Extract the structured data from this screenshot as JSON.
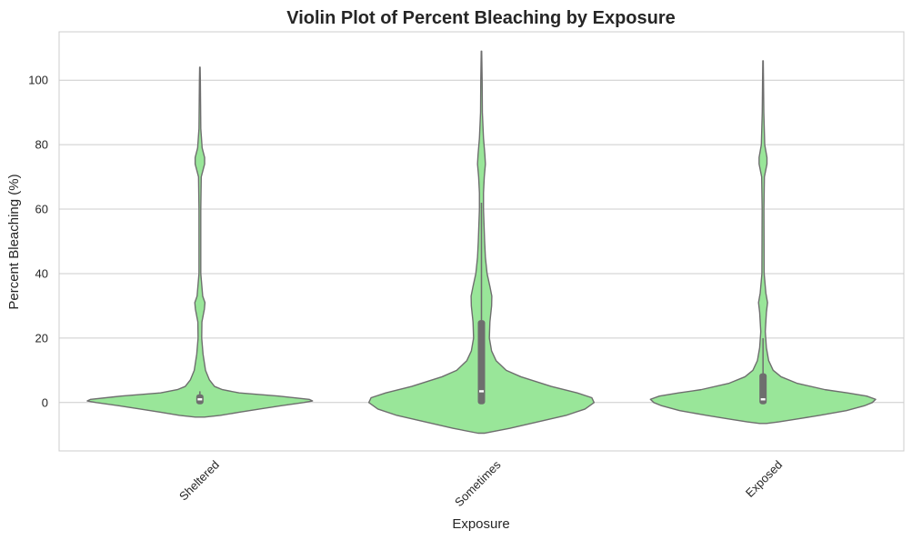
{
  "chart_data": {
    "type": "violin",
    "title": "Violin Plot of Percent Bleaching by Exposure",
    "xlabel": "Exposure",
    "ylabel": "Percent Bleaching (%)",
    "ylim": [
      -15,
      115
    ],
    "yticks": [
      0,
      20,
      40,
      60,
      80,
      100
    ],
    "grid": true,
    "color": "#99e699",
    "edge_color": "#6e6e6e",
    "categories": [
      "Sheltered",
      "Sometimes",
      "Exposed"
    ],
    "violins": [
      {
        "category": "Sheltered",
        "min": 0,
        "q1": 0,
        "median": 1,
        "q3": 2,
        "whisker_high": 3.5,
        "kde_range": [
          -4.5,
          104
        ],
        "density": [
          [
            -4.5,
            0.04
          ],
          [
            -4,
            0.18
          ],
          [
            -3,
            0.35
          ],
          [
            -2,
            0.53
          ],
          [
            -1,
            0.72
          ],
          [
            0,
            0.92
          ],
          [
            0.5,
            1.0
          ],
          [
            1,
            0.97
          ],
          [
            2,
            0.7
          ],
          [
            3,
            0.35
          ],
          [
            4,
            0.2
          ],
          [
            5,
            0.13
          ],
          [
            7,
            0.085
          ],
          [
            10,
            0.05
          ],
          [
            15,
            0.028
          ],
          [
            20,
            0.016
          ],
          [
            25,
            0.018
          ],
          [
            29,
            0.04
          ],
          [
            31,
            0.045
          ],
          [
            33,
            0.025
          ],
          [
            40,
            0.008
          ],
          [
            60,
            0.008
          ],
          [
            70,
            0.012
          ],
          [
            74,
            0.042
          ],
          [
            76,
            0.042
          ],
          [
            79,
            0.02
          ],
          [
            85,
            0.008
          ],
          [
            100,
            0.004
          ],
          [
            104,
            0.002
          ]
        ]
      },
      {
        "category": "Sometimes",
        "min": 0,
        "q1": 0,
        "median": 3.5,
        "q3": 25,
        "whisker_high": 62,
        "kde_range": [
          -9.5,
          109
        ],
        "density": [
          [
            -9.5,
            0.03
          ],
          [
            -8,
            0.25
          ],
          [
            -6,
            0.5
          ],
          [
            -4,
            0.75
          ],
          [
            -2,
            0.92
          ],
          [
            0,
            1.0
          ],
          [
            1.5,
            0.98
          ],
          [
            3,
            0.85
          ],
          [
            5,
            0.62
          ],
          [
            8,
            0.35
          ],
          [
            10,
            0.22
          ],
          [
            13,
            0.13
          ],
          [
            16,
            0.09
          ],
          [
            20,
            0.07
          ],
          [
            25,
            0.075
          ],
          [
            30,
            0.09
          ],
          [
            33,
            0.092
          ],
          [
            36,
            0.075
          ],
          [
            40,
            0.05
          ],
          [
            45,
            0.035
          ],
          [
            50,
            0.028
          ],
          [
            55,
            0.023
          ],
          [
            60,
            0.018
          ],
          [
            65,
            0.018
          ],
          [
            70,
            0.025
          ],
          [
            74,
            0.035
          ],
          [
            77,
            0.03
          ],
          [
            82,
            0.018
          ],
          [
            90,
            0.008
          ],
          [
            100,
            0.006
          ],
          [
            109,
            0.002
          ]
        ]
      },
      {
        "category": "Exposed",
        "min": 0,
        "q1": 0,
        "median": 1,
        "q3": 8.5,
        "whisker_high": 20,
        "kde_range": [
          -6.5,
          106
        ],
        "density": [
          [
            -6.5,
            0.03
          ],
          [
            -6,
            0.14
          ],
          [
            -5,
            0.32
          ],
          [
            -4,
            0.5
          ],
          [
            -2.5,
            0.74
          ],
          [
            -1,
            0.9
          ],
          [
            0,
            0.97
          ],
          [
            1,
            1.0
          ],
          [
            2,
            0.92
          ],
          [
            3,
            0.75
          ],
          [
            4,
            0.55
          ],
          [
            6,
            0.3
          ],
          [
            8,
            0.16
          ],
          [
            10,
            0.09
          ],
          [
            13,
            0.05
          ],
          [
            17,
            0.03
          ],
          [
            22,
            0.02
          ],
          [
            28,
            0.03
          ],
          [
            31,
            0.04
          ],
          [
            34,
            0.025
          ],
          [
            40,
            0.01
          ],
          [
            60,
            0.008
          ],
          [
            70,
            0.012
          ],
          [
            74,
            0.035
          ],
          [
            76,
            0.035
          ],
          [
            80,
            0.015
          ],
          [
            90,
            0.007
          ],
          [
            100,
            0.004
          ],
          [
            106,
            0.002
          ]
        ]
      }
    ]
  }
}
